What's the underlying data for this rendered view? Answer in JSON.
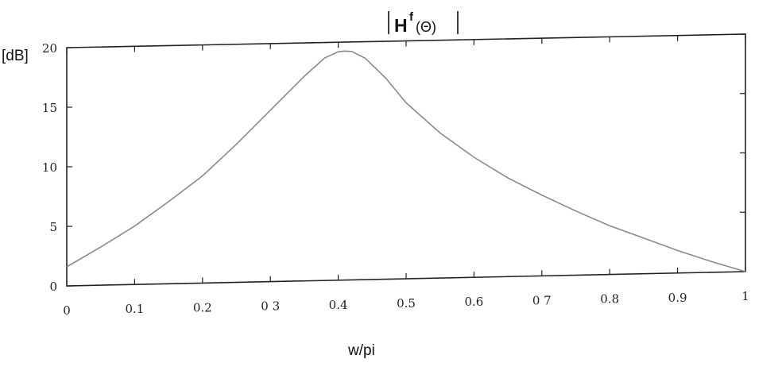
{
  "chart_data": {
    "type": "line",
    "title": {
      "main": "H",
      "superscript": "f",
      "argument": "(Θ)"
    },
    "xlabel": "w/pi",
    "ylabel": "[dB]",
    "xlim": [
      0,
      1
    ],
    "ylim": [
      0,
      20
    ],
    "x_ticks": [
      "0",
      "0.1",
      "0.2",
      "0 3",
      "0.4",
      "0.5",
      "0.6",
      "0 7",
      "0.8",
      "0.9",
      "1"
    ],
    "y_ticks": [
      "0",
      "5",
      "10",
      "15",
      "20"
    ],
    "grid": false,
    "colors": {
      "line": "#8a8a8a",
      "frame": "#222222"
    },
    "series": [
      {
        "x": [
          0,
          0.05,
          0.1,
          0.15,
          0.2,
          0.25,
          0.3,
          0.35,
          0.38,
          0.4,
          0.41,
          0.42,
          0.44,
          0.47,
          0.5,
          0.55,
          0.6,
          0.65,
          0.7,
          0.75,
          0.8,
          0.85,
          0.9,
          0.95,
          1.0
        ],
        "y": [
          1.6,
          3.2,
          4.9,
          6.9,
          9.0,
          11.6,
          14.4,
          17.2,
          18.7,
          19.2,
          19.25,
          19.2,
          18.6,
          16.9,
          14.8,
          12.2,
          10.1,
          8.3,
          6.8,
          5.4,
          4.1,
          3.0,
          1.9,
          0.9,
          0.0
        ]
      }
    ]
  }
}
